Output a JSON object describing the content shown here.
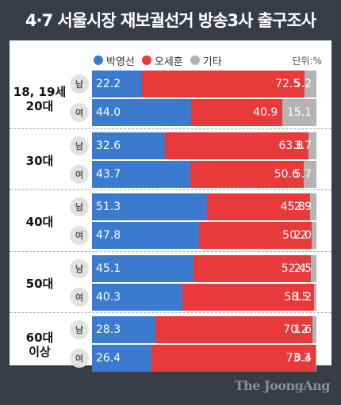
{
  "title": "4·7 서울시장 재보궐선거 방송3사 출구조사",
  "unit_label": "단위:%",
  "brand": "The JoongAng",
  "colors": {
    "park": "#3a7bd0",
    "oh": "#e83a3a",
    "other": "#b3b3b3",
    "background": "#383c47"
  },
  "legend": [
    {
      "name": "박영선",
      "color": "#3a7bd0"
    },
    {
      "name": "오세훈",
      "color": "#e83a3a"
    },
    {
      "name": "기타",
      "color": "#b3b3b3"
    }
  ],
  "chart_data": {
    "type": "bar",
    "title": "4·7 서울시장 재보궐선거 방송3사 출구조사",
    "stacked": true,
    "orientation": "horizontal",
    "series_names": [
      "박영선",
      "오세훈",
      "기타"
    ],
    "groups": [
      {
        "label": "18, 19세\n20대",
        "rows": [
          {
            "gender": "남",
            "values": [
              22.2,
              72.5,
              5.2
            ]
          },
          {
            "gender": "여",
            "values": [
              44.0,
              40.9,
              15.1
            ]
          }
        ]
      },
      {
        "label": "30대",
        "rows": [
          {
            "gender": "남",
            "values": [
              32.6,
              63.8,
              3.7
            ]
          },
          {
            "gender": "여",
            "values": [
              43.7,
              50.6,
              5.7
            ]
          }
        ]
      },
      {
        "label": "40대",
        "rows": [
          {
            "gender": "남",
            "values": [
              51.3,
              45.8,
              2.9
            ]
          },
          {
            "gender": "여",
            "values": [
              47.8,
              50.2,
              2.0
            ]
          }
        ]
      },
      {
        "label": "50대",
        "rows": [
          {
            "gender": "남",
            "values": [
              45.1,
              52.4,
              2.5
            ]
          },
          {
            "gender": "여",
            "values": [
              40.3,
              58.5,
              1.2
            ]
          }
        ]
      },
      {
        "label": "60대\n이상",
        "rows": [
          {
            "gender": "남",
            "values": [
              28.3,
              70.2,
              1.6
            ]
          },
          {
            "gender": "여",
            "values": [
              26.4,
              73.3,
              0.4
            ]
          }
        ]
      }
    ]
  }
}
